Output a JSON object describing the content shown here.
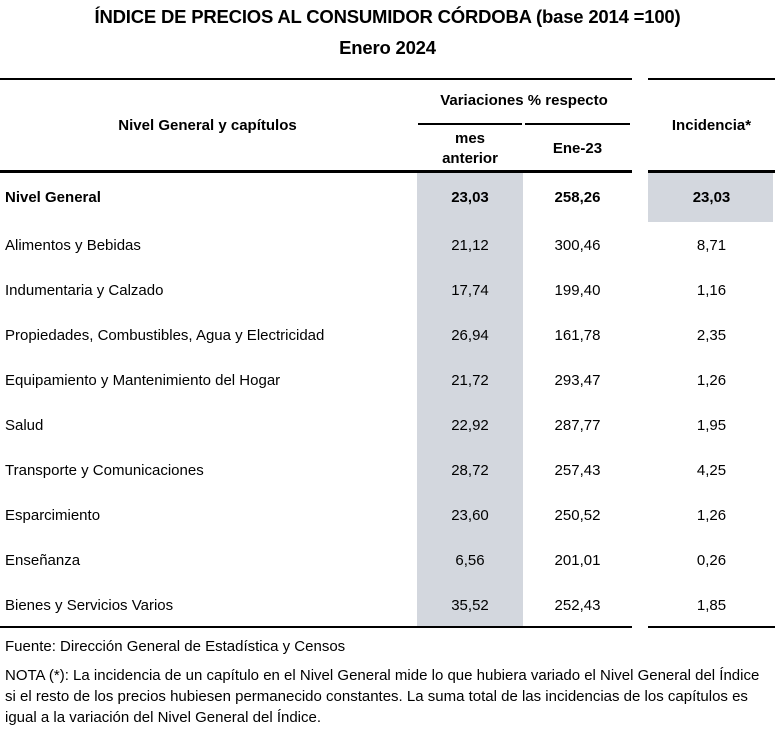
{
  "title": "ÍNDICE DE PRECIOS AL CONSUMIDOR CÓRDOBA (base 2014 =100)",
  "subtitle": "Enero 2024",
  "headers": {
    "category": "Nivel General y capítulos",
    "variations": "Variaciones % respecto",
    "prev_month": "mes anterior",
    "year_ago": "Ene-23",
    "incidence": "Incidencia*"
  },
  "colors": {
    "highlight": "#d3d7de"
  },
  "rows": [
    {
      "label": "Nivel General",
      "mes_anterior": "23,03",
      "ene_23": "258,26",
      "incidencia": "23,03",
      "bold": true
    },
    {
      "label": "Alimentos y Bebidas",
      "mes_anterior": "21,12",
      "ene_23": "300,46",
      "incidencia": "8,71"
    },
    {
      "label": "Indumentaria y Calzado",
      "mes_anterior": "17,74",
      "ene_23": "199,40",
      "incidencia": "1,16"
    },
    {
      "label": "Propiedades, Combustibles, Agua y Electricidad",
      "mes_anterior": "26,94",
      "ene_23": "161,78",
      "incidencia": "2,35"
    },
    {
      "label": "Equipamiento y Mantenimiento del Hogar",
      "mes_anterior": "21,72",
      "ene_23": "293,47",
      "incidencia": "1,26"
    },
    {
      "label": "Salud",
      "mes_anterior": "22,92",
      "ene_23": "287,77",
      "incidencia": "1,95"
    },
    {
      "label": "Transporte y Comunicaciones",
      "mes_anterior": "28,72",
      "ene_23": "257,43",
      "incidencia": "4,25"
    },
    {
      "label": "Esparcimiento",
      "mes_anterior": "23,60",
      "ene_23": "250,52",
      "incidencia": "1,26"
    },
    {
      "label": "Enseñanza",
      "mes_anterior": "6,56",
      "ene_23": "201,01",
      "incidencia": "0,26"
    },
    {
      "label": "Bienes y Servicios Varios",
      "mes_anterior": "35,52",
      "ene_23": "252,43",
      "incidencia": "1,85"
    }
  ],
  "source": "Fuente: Dirección General de Estadística y Censos",
  "note": "NOTA (*): La incidencia de un capítulo en el Nivel General mide lo que hubiera variado el Nivel General del Índice si el resto de los precios hubiesen permanecido constantes. La suma total de las incidencias de los capítulos es igual a la variación del Nivel General del Índice."
}
